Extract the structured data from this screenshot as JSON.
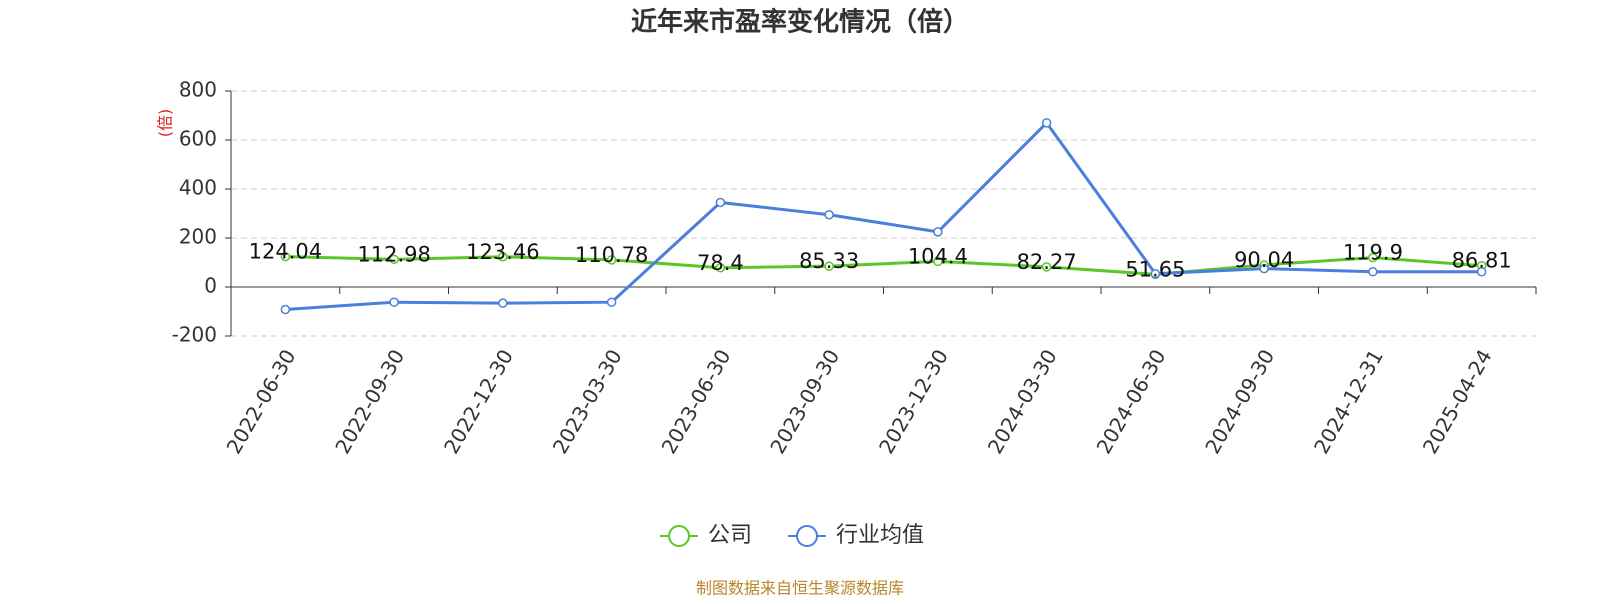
{
  "chart_data": {
    "type": "line",
    "title": "近年来市盈率变化情况（倍）",
    "y_label": "(倍)",
    "categories": [
      "2022-06-30",
      "2022-09-30",
      "2022-12-30",
      "2023-03-30",
      "2023-06-30",
      "2023-09-30",
      "2023-12-30",
      "2024-03-30",
      "2024-06-30",
      "2024-09-30",
      "2024-12-31",
      "2025-04-24"
    ],
    "series": [
      {
        "name": "公司",
        "color": "#5bc726",
        "values": [
          124.04,
          112.98,
          123.46,
          110.78,
          78.4,
          85.33,
          104.4,
          82.27,
          51.65,
          90.04,
          119.9,
          86.81
        ],
        "show_labels": true
      },
      {
        "name": "行业均值",
        "color": "#4a7fdc",
        "values": [
          -92,
          -62,
          -66,
          -62,
          345,
          295,
          225,
          670,
          54,
          75,
          62,
          62
        ],
        "show_labels": false
      }
    ],
    "ylim": [
      -200,
      800
    ],
    "yticks": [
      -200,
      0,
      200,
      400,
      600,
      800
    ],
    "grid": true,
    "source": "制图数据来自恒生聚源数据库"
  }
}
